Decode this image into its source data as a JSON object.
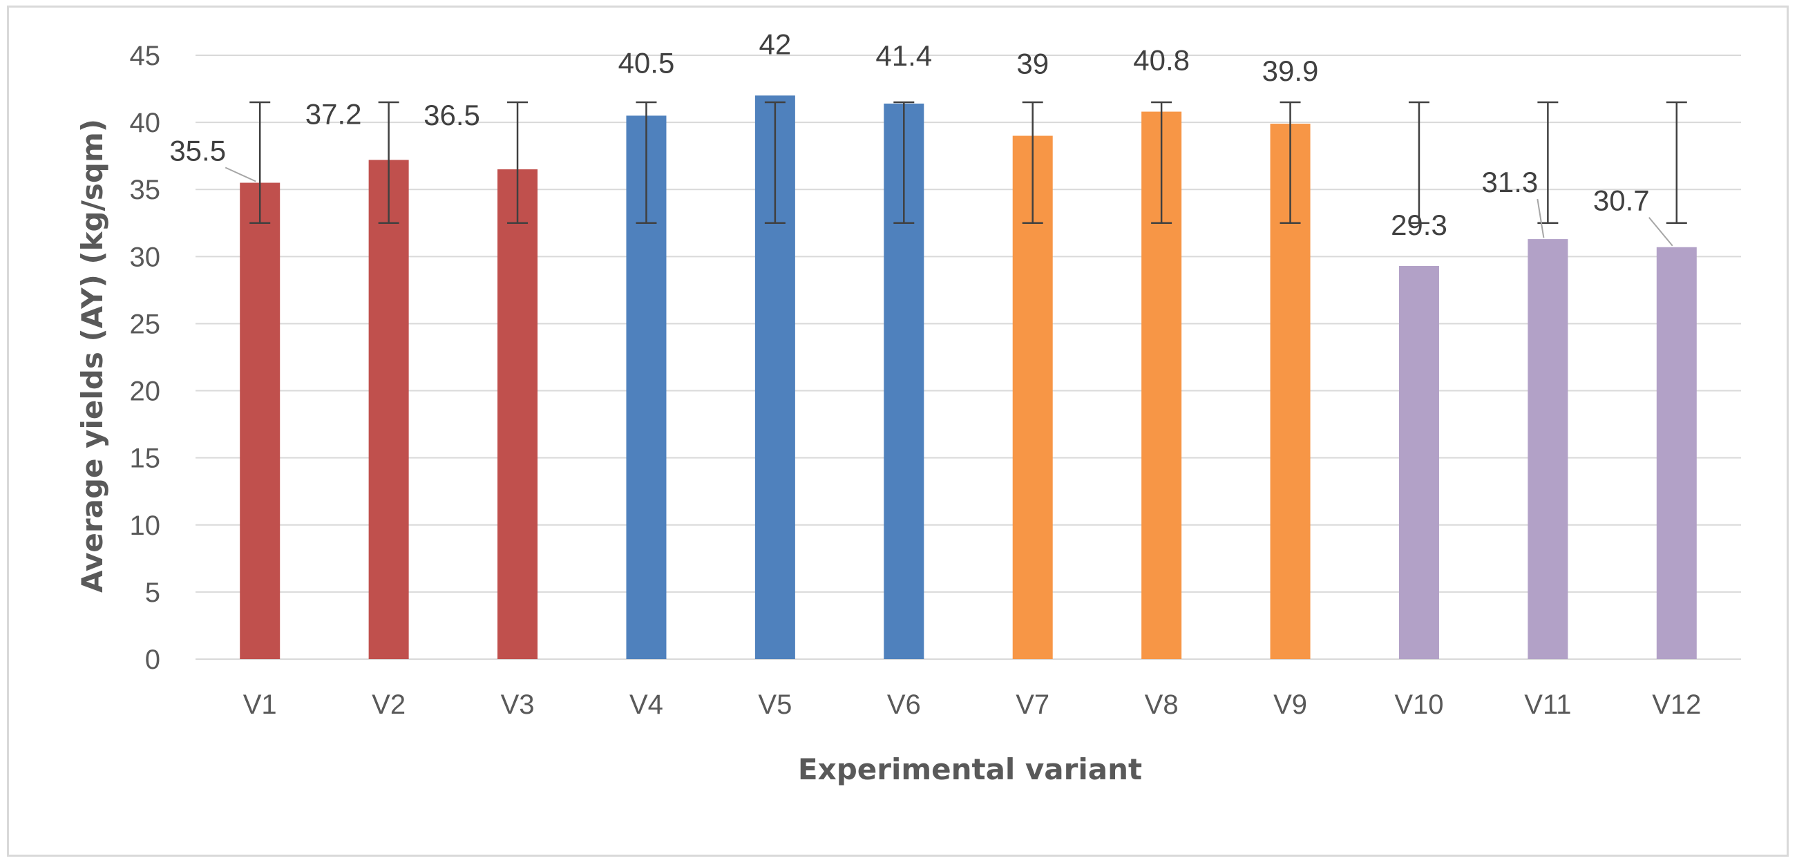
{
  "chart_data": {
    "type": "bar",
    "title": "",
    "xlabel": "Experimental variant",
    "ylabel": "Average yields (AY) (kg/sqm)",
    "ylim": [
      0,
      45
    ],
    "yticks": [
      0,
      5,
      10,
      15,
      20,
      25,
      30,
      35,
      40,
      45
    ],
    "grid": true,
    "legend": "none",
    "categories": [
      "V1",
      "V2",
      "V3",
      "V4",
      "V5",
      "V6",
      "V7",
      "V8",
      "V9",
      "V10",
      "V11",
      "V12"
    ],
    "values": [
      35.5,
      37.2,
      36.5,
      40.5,
      42,
      41.4,
      39,
      40.8,
      39.9,
      29.3,
      31.3,
      30.7
    ],
    "data_labels": [
      "35.5",
      "37.2",
      "36.5",
      "40.5",
      "42",
      "41.4",
      "39",
      "40.8",
      "39.9",
      "29.3",
      "31.3",
      "30.7"
    ],
    "error_bars": {
      "low": 32.5,
      "high": 41.5
    },
    "bar_colors": [
      "#c0504d",
      "#c0504d",
      "#c0504d",
      "#4f81bd",
      "#4f81bd",
      "#4f81bd",
      "#f79646",
      "#f79646",
      "#f79646",
      "#b2a1c7",
      "#b2a1c7",
      "#b2a1c7"
    ],
    "gridline_color": "#d9d9d9",
    "errorbar_color": "#404040"
  }
}
